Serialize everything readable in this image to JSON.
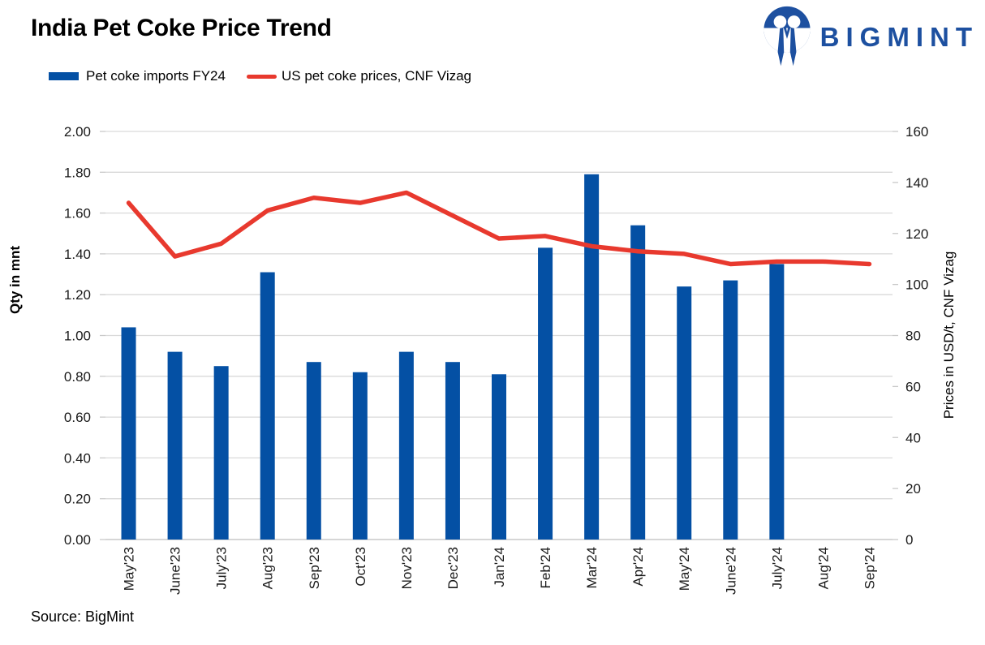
{
  "header": {
    "title": "India Pet Coke Price Trend",
    "brand": "BIGMINT",
    "brand_color": "#1d50a0"
  },
  "legend": {
    "items": [
      {
        "label": "Pet coke imports FY24",
        "marker": "bar-swatch",
        "color": "#0450a4"
      },
      {
        "label": "US pet coke prices, CNF Vizag",
        "marker": "line-swatch",
        "color": "#e8392e"
      }
    ]
  },
  "footer": {
    "source": "Source: BigMint"
  },
  "chart_data": {
    "type": "bar",
    "title": "India Pet Coke Price Trend",
    "categories": [
      "May'23",
      "June'23",
      "July'23",
      "Aug'23",
      "Sep'23",
      "Oct'23",
      "Nov'23",
      "Dec'23",
      "Jan'24",
      "Feb'24",
      "Mar'24",
      "Apr'24",
      "May'24",
      "June'24",
      "July'24",
      "Aug'24",
      "Sep'24"
    ],
    "series": [
      {
        "name": "Pet coke imports FY24",
        "type": "bar",
        "axis": "left",
        "color": "#0450a4",
        "values": [
          1.04,
          0.92,
          0.85,
          1.31,
          0.87,
          0.82,
          0.92,
          0.87,
          0.81,
          1.43,
          1.79,
          1.54,
          1.24,
          1.27,
          1.35,
          null,
          null
        ]
      },
      {
        "name": "US pet coke prices, CNF Vizag",
        "type": "line",
        "axis": "right",
        "color": "#e8392e",
        "values": [
          132,
          111,
          116,
          129,
          134,
          132,
          136,
          127,
          118,
          119,
          115,
          113,
          112,
          108,
          109,
          109,
          108
        ]
      }
    ],
    "left_axis": {
      "label": "Qty in mnt",
      "min": 0,
      "max": 2,
      "step": 0.2,
      "ticks": [
        "2.00",
        "1.80",
        "1.60",
        "1.40",
        "1.20",
        "1.00",
        "0.80",
        "0.60",
        "0.40",
        "0.20",
        "0.00"
      ]
    },
    "right_axis": {
      "label": "Prices in USD/t, CNF Vizag",
      "min": 0,
      "max": 160,
      "step": 20,
      "ticks": [
        "160",
        "140",
        "120",
        "100",
        "80",
        "60",
        "40",
        "20",
        "0"
      ]
    },
    "grid": true,
    "grid_color": "#d9d9d9",
    "baseline_color": "#c9c9c9",
    "legend_position": "top-left"
  }
}
